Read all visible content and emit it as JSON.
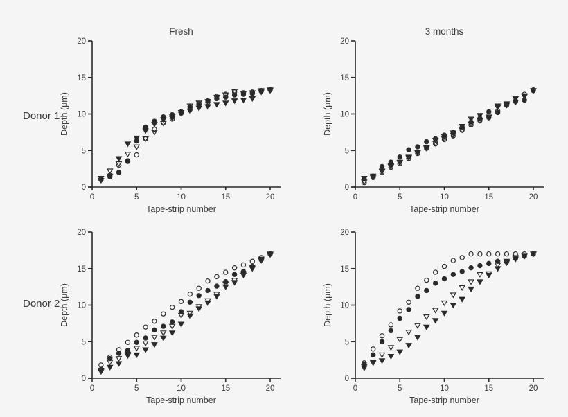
{
  "figure": {
    "background": "#f5f5f6",
    "ink": "#2b2b2b",
    "text_color": "#3b3b3b"
  },
  "row_labels": [
    "Donor 1",
    "Donor 2"
  ],
  "col_titles": [
    "Fresh",
    "3 months"
  ],
  "axes": {
    "xlabel": "Tape-strip number",
    "ylabel": "Depth (μm)",
    "xticks": [
      0,
      5,
      10,
      15,
      20
    ],
    "yticks": [
      0,
      5,
      10,
      15,
      20
    ],
    "xlim": [
      0,
      22
    ],
    "ylim": [
      0,
      20
    ]
  },
  "markers": {
    "open-circle": "open circle",
    "filled-circle": "filled circle",
    "open-triangle-down": "open inverted triangle",
    "filled-triangle-down": "filled inverted triangle"
  },
  "chart_data": [
    {
      "type": "scatter",
      "title": "Fresh",
      "row": "Donor 1",
      "xlabel": "Tape-strip number",
      "ylabel": "Depth (μm)",
      "xlim": [
        0,
        22
      ],
      "ylim": [
        0,
        20
      ],
      "xticks": [
        0,
        5,
        10,
        15,
        20
      ],
      "yticks": [
        0,
        5,
        10,
        15,
        20
      ],
      "x": [
        1,
        2,
        3,
        4,
        5,
        6,
        7,
        8,
        9,
        10,
        11,
        12,
        13,
        14,
        15,
        16,
        17,
        18,
        19,
        20
      ],
      "series": [
        {
          "name": "open-circle",
          "marker": "circle",
          "fill": "open",
          "values": [
            1.1,
            1.6,
            3.0,
            3.5,
            4.4,
            6.6,
            7.9,
            8.8,
            9.3,
            10.1,
            11.0,
            11.4,
            11.6,
            12.4,
            12.7,
            13.0,
            12.9,
            13.0,
            13.2,
            13.3
          ]
        },
        {
          "name": "filled-circle",
          "marker": "circle",
          "fill": "filled",
          "values": [
            1.0,
            1.4,
            2.0,
            3.6,
            6.3,
            8.2,
            9.0,
            9.6,
            9.9,
            10.3,
            10.9,
            11.3,
            11.8,
            12.1,
            12.3,
            12.6,
            12.7,
            12.8,
            13.1,
            13.3
          ]
        },
        {
          "name": "open-triangle-down",
          "marker": "triangle-down",
          "fill": "open",
          "values": [
            1.2,
            2.2,
            3.2,
            4.5,
            5.5,
            6.6,
            7.5,
            8.7,
            9.4,
            10.2,
            11.1,
            11.5,
            11.7,
            12.3,
            12.6,
            13.1,
            12.8,
            12.9,
            13.2,
            13.3
          ]
        },
        {
          "name": "filled-triangle-down",
          "marker": "triangle-down",
          "fill": "filled",
          "values": [
            0.9,
            1.5,
            3.9,
            5.9,
            6.7,
            7.7,
            8.6,
            9.2,
            9.6,
            10.0,
            10.4,
            10.8,
            11.0,
            11.3,
            11.5,
            11.8,
            11.9,
            12.1,
            13.0,
            13.2
          ]
        }
      ]
    },
    {
      "type": "scatter",
      "title": "3 months",
      "row": "Donor 1",
      "xlabel": "Tape-strip number",
      "ylabel": "Depth (μm)",
      "xlim": [
        0,
        22
      ],
      "ylim": [
        0,
        20
      ],
      "xticks": [
        0,
        5,
        10,
        15,
        20
      ],
      "yticks": [
        0,
        5,
        10,
        15,
        20
      ],
      "x": [
        1,
        2,
        3,
        4,
        5,
        6,
        7,
        8,
        9,
        10,
        11,
        12,
        13,
        14,
        15,
        16,
        17,
        18,
        19,
        20
      ],
      "series": [
        {
          "name": "open-circle",
          "marker": "circle",
          "fill": "open",
          "values": [
            0.6,
            1.3,
            2.0,
            2.7,
            3.2,
            3.9,
            4.6,
            5.3,
            5.9,
            6.5,
            7.0,
            7.8,
            8.5,
            9.1,
            9.5,
            10.4,
            11.2,
            11.7,
            12.7,
            13.3
          ]
        },
        {
          "name": "filled-circle",
          "marker": "circle",
          "fill": "filled",
          "values": [
            1.1,
            1.5,
            2.8,
            3.4,
            4.1,
            5.1,
            5.5,
            6.2,
            6.6,
            7.1,
            7.5,
            8.2,
            8.9,
            9.4,
            10.3,
            10.2,
            11.3,
            11.8,
            11.9,
            13.2
          ]
        },
        {
          "name": "open-triangle-down",
          "marker": "triangle-down",
          "fill": "open",
          "values": [
            0.7,
            1.3,
            2.1,
            2.8,
            3.3,
            4.0,
            4.7,
            5.3,
            6.0,
            6.6,
            7.1,
            7.8,
            8.6,
            9.1,
            9.5,
            10.9,
            11.2,
            11.6,
            12.5,
            13.2
          ]
        },
        {
          "name": "filled-triangle-down",
          "marker": "triangle-down",
          "fill": "filled",
          "values": [
            1.2,
            1.5,
            2.2,
            2.9,
            3.4,
            4.1,
            4.7,
            5.4,
            6.4,
            6.9,
            7.4,
            8.3,
            9.3,
            9.8,
            9.6,
            11.1,
            11.4,
            12.1,
            12.4,
            13.2
          ]
        }
      ]
    },
    {
      "type": "scatter",
      "title": "",
      "row": "Donor 2",
      "xlabel": "Tape-strip number",
      "ylabel": "Depth (μm)",
      "xlim": [
        0,
        22
      ],
      "ylim": [
        0,
        20
      ],
      "xticks": [
        0,
        5,
        10,
        15,
        20
      ],
      "yticks": [
        0,
        5,
        10,
        15,
        20
      ],
      "x": [
        1,
        2,
        3,
        4,
        5,
        6,
        7,
        8,
        9,
        10,
        11,
        12,
        13,
        14,
        15,
        16,
        17,
        18,
        19,
        20
      ],
      "series": [
        {
          "name": "open-circle",
          "marker": "circle",
          "fill": "open",
          "values": [
            1.8,
            2.9,
            3.9,
            4.9,
            5.9,
            7.0,
            7.8,
            8.8,
            9.7,
            10.5,
            11.5,
            12.3,
            13.3,
            13.9,
            14.5,
            15.1,
            15.5,
            16.0,
            16.5,
            17.0
          ]
        },
        {
          "name": "filled-circle",
          "marker": "circle",
          "fill": "filled",
          "values": [
            1.2,
            2.7,
            3.4,
            3.8,
            4.9,
            5.5,
            6.6,
            7.1,
            7.7,
            9.1,
            10.4,
            11.3,
            12.0,
            12.6,
            13.2,
            14.2,
            14.6,
            15.3,
            16.2,
            17.0
          ]
        },
        {
          "name": "open-triangle-down",
          "marker": "triangle-down",
          "fill": "open",
          "values": [
            1.1,
            2.2,
            2.7,
            3.3,
            4.1,
            4.8,
            5.6,
            6.2,
            7.1,
            8.6,
            8.9,
            9.8,
            10.6,
            11.5,
            12.9,
            13.4,
            14.3,
            15.2,
            16.3,
            17.0
          ]
        },
        {
          "name": "filled-triangle-down",
          "marker": "triangle-down",
          "fill": "filled",
          "values": [
            0.9,
            1.5,
            2.0,
            3.1,
            3.2,
            3.9,
            4.6,
            5.5,
            6.2,
            7.4,
            8.5,
            9.5,
            10.3,
            11.2,
            12.5,
            13.1,
            14.1,
            15.0,
            16.1,
            16.9
          ]
        }
      ]
    },
    {
      "type": "scatter",
      "title": "",
      "row": "Donor 2",
      "xlabel": "Tape-strip number",
      "ylabel": "Depth (μm)",
      "xlim": [
        0,
        22
      ],
      "ylim": [
        0,
        20
      ],
      "xticks": [
        0,
        5,
        10,
        15,
        20
      ],
      "yticks": [
        0,
        5,
        10,
        15,
        20
      ],
      "x": [
        1,
        2,
        3,
        4,
        5,
        6,
        7,
        8,
        9,
        10,
        11,
        12,
        13,
        14,
        15,
        16,
        17,
        18,
        19,
        20
      ],
      "series": [
        {
          "name": "open-circle",
          "marker": "circle",
          "fill": "open",
          "values": [
            2.1,
            4.0,
            5.8,
            7.3,
            9.2,
            10.4,
            12.3,
            13.4,
            14.5,
            15.3,
            16.1,
            16.5,
            17.0,
            17.0,
            17.0,
            17.0,
            17.0,
            17.0,
            17.0,
            17.0
          ]
        },
        {
          "name": "filled-circle",
          "marker": "circle",
          "fill": "filled",
          "values": [
            1.9,
            3.2,
            5.0,
            6.5,
            8.2,
            9.4,
            11.2,
            12.0,
            13.0,
            13.6,
            14.2,
            14.6,
            15.1,
            15.4,
            15.7,
            16.0,
            15.9,
            16.4,
            16.7,
            17.0
          ]
        },
        {
          "name": "open-triangle-down",
          "marker": "triangle-down",
          "fill": "open",
          "values": [
            1.4,
            2.2,
            3.2,
            4.2,
            5.3,
            6.3,
            7.2,
            8.4,
            9.3,
            10.3,
            11.4,
            12.4,
            13.2,
            14.2,
            14.3,
            15.5,
            16.0,
            16.5,
            16.8,
            17.0
          ]
        },
        {
          "name": "filled-triangle-down",
          "marker": "triangle-down",
          "fill": "filled",
          "values": [
            1.6,
            2.1,
            2.4,
            3.0,
            3.6,
            4.5,
            5.6,
            7.0,
            7.9,
            8.9,
            10.0,
            10.8,
            12.2,
            13.2,
            14.1,
            15.0,
            15.8,
            16.3,
            16.7,
            17.0
          ]
        }
      ]
    }
  ]
}
